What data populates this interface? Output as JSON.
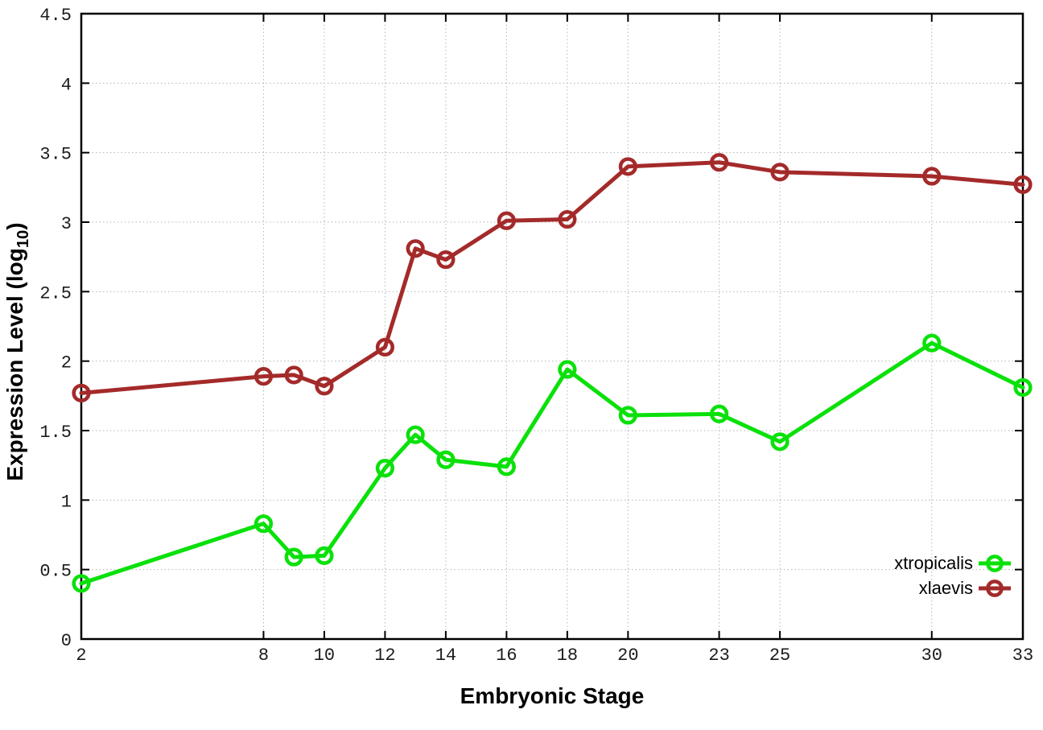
{
  "figure": {
    "background": "#ffffff",
    "border_color": "#000000",
    "grid_color": "#b5b5b5",
    "x_axis": {
      "title": "Embryonic Stage",
      "tick_labels": [
        "2",
        "8",
        "10",
        "12",
        "14",
        "16",
        "18",
        "20",
        "23",
        "25",
        "30",
        "33"
      ],
      "tick_values": [
        2,
        8,
        10,
        12,
        14,
        16,
        18,
        20,
        23,
        25,
        30,
        33
      ],
      "range": [
        2,
        33
      ]
    },
    "y_axis": {
      "title_main": "Expression Level (log",
      "title_sub": "10",
      "title_end": ")",
      "tick_labels": [
        "0",
        "0.5",
        "1",
        "1.5",
        "2",
        "2.5",
        "3",
        "3.5",
        "4",
        "4.5"
      ],
      "tick_values": [
        0,
        0.5,
        1,
        1.5,
        2,
        2.5,
        3,
        3.5,
        4,
        4.5
      ],
      "range": [
        0,
        4.5
      ]
    },
    "legend": {
      "position": "bottom-right",
      "entries": [
        {
          "label": "xtropicalis",
          "color": "#0ae10a"
        },
        {
          "label": "xlaevis",
          "color": "#a42a2a"
        }
      ]
    }
  },
  "chart_data": {
    "type": "line",
    "title": "",
    "xlabel": "Embryonic Stage",
    "ylabel": "Expression Level (log10)",
    "x": [
      2,
      8,
      9,
      10,
      12,
      13,
      14,
      16,
      18,
      20,
      23,
      25,
      30,
      33
    ],
    "series": [
      {
        "name": "xtropicalis",
        "color": "#0ae10a",
        "values": [
          0.4,
          0.83,
          0.59,
          0.6,
          1.23,
          1.47,
          1.29,
          1.24,
          1.94,
          1.61,
          1.62,
          1.42,
          2.13,
          1.81
        ]
      },
      {
        "name": "xlaevis",
        "color": "#a42a2a",
        "values": [
          1.77,
          1.89,
          1.9,
          1.82,
          2.1,
          2.81,
          2.73,
          3.01,
          3.02,
          3.4,
          3.43,
          3.36,
          3.33,
          3.27
        ]
      }
    ],
    "xlim": [
      2,
      33
    ],
    "ylim": [
      0,
      4.5
    ],
    "x_ticks": [
      2,
      8,
      10,
      12,
      14,
      16,
      18,
      20,
      23,
      25,
      30,
      33
    ],
    "y_ticks": [
      0,
      0.5,
      1,
      1.5,
      2,
      2.5,
      3,
      3.5,
      4,
      4.5
    ],
    "grid": true,
    "grid_style": "dotted",
    "marker": "open-circle",
    "legend_position": "bottom-right"
  }
}
